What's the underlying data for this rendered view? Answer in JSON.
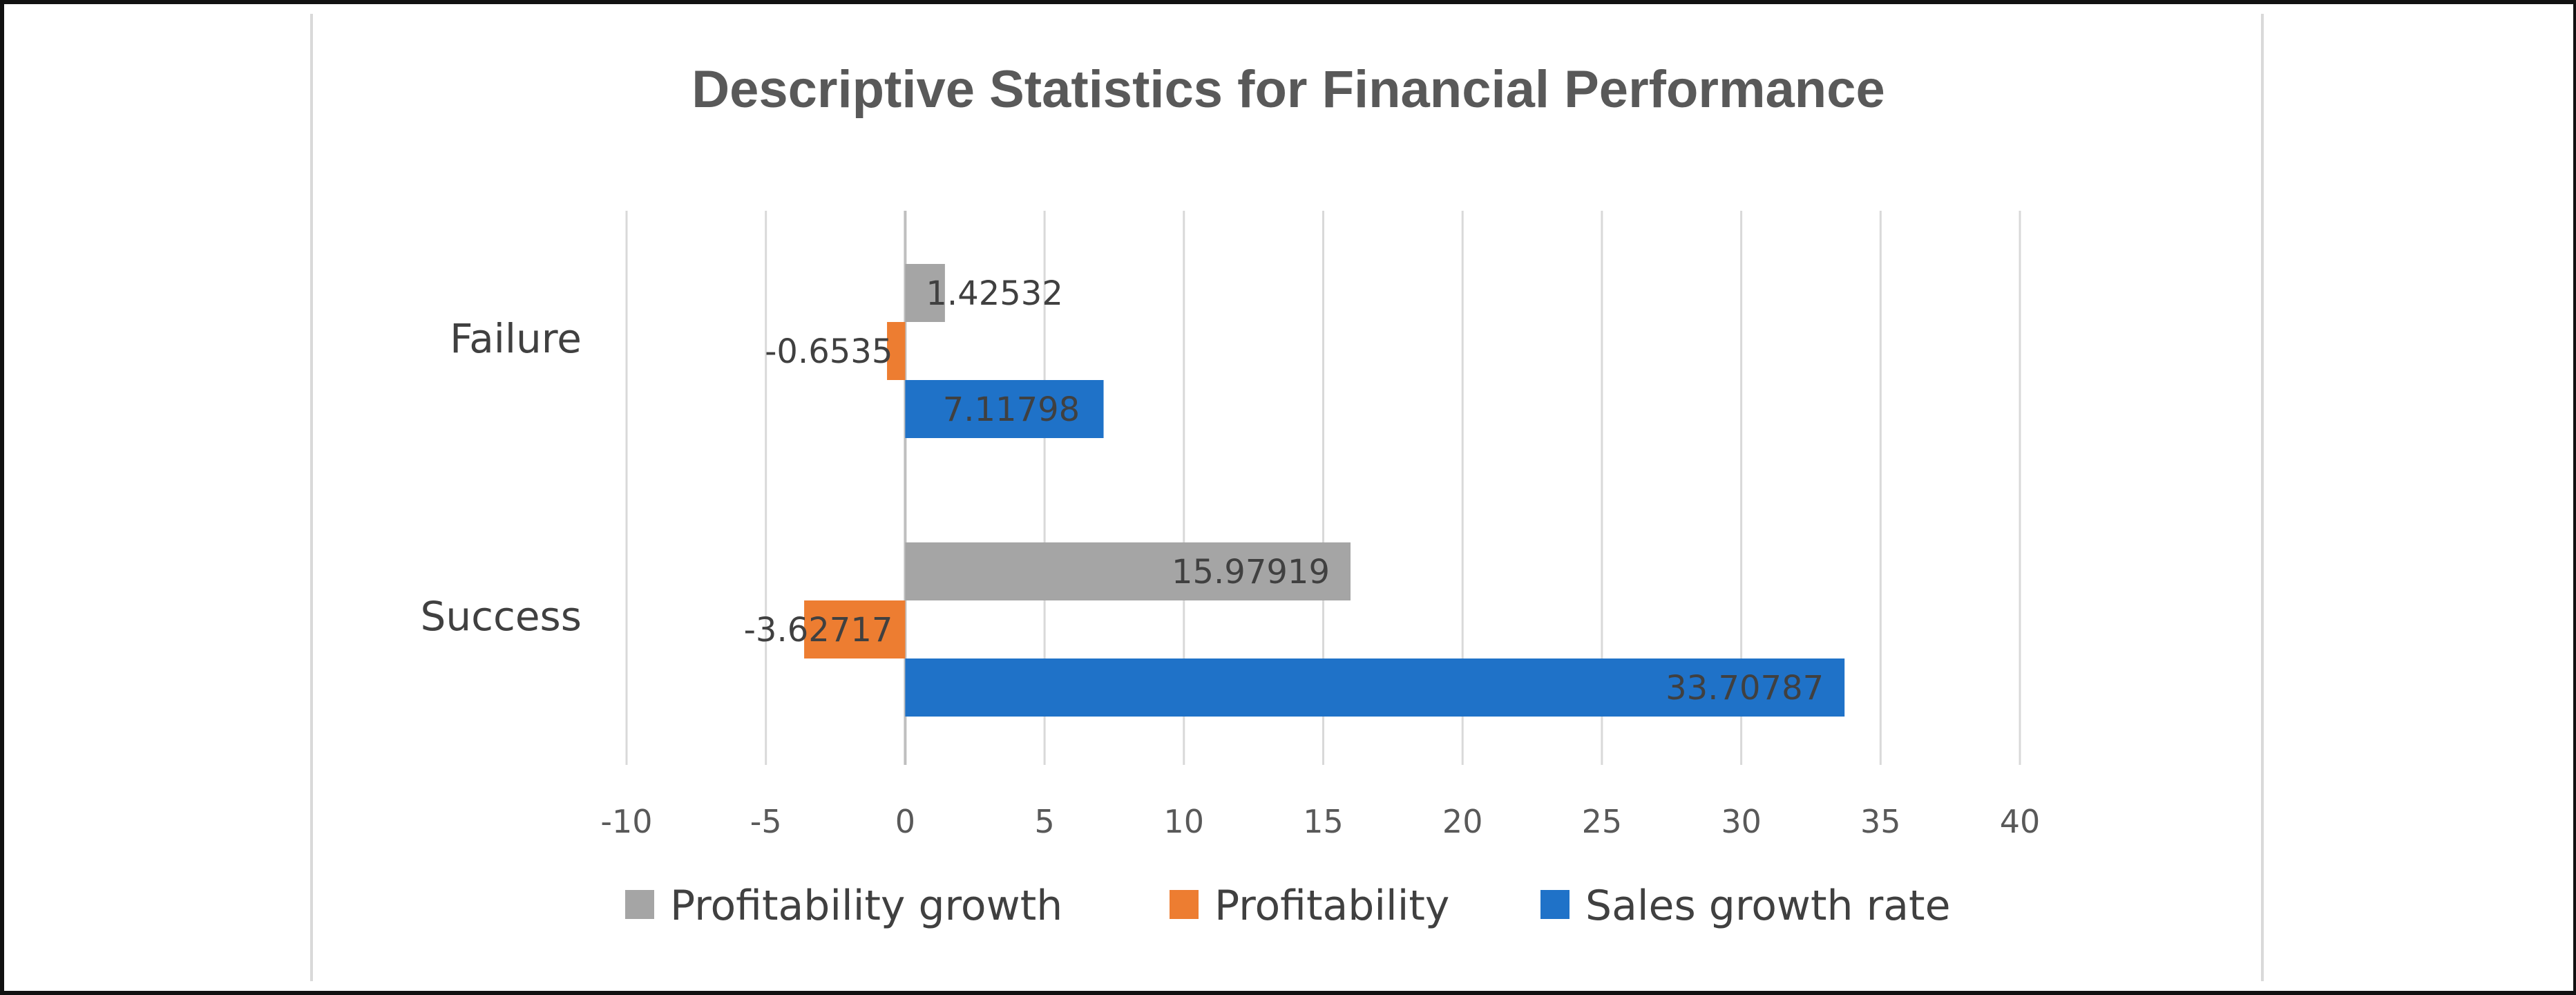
{
  "chart_data": {
    "type": "bar",
    "orientation": "horizontal",
    "title": "Descriptive Statistics for Financial Performance",
    "categories": [
      "Failure",
      "Success"
    ],
    "series": [
      {
        "name": "Profitability growth",
        "color": "#A5A5A5",
        "values": [
          1.42532,
          15.97919
        ],
        "labels": [
          "1.42532",
          "15.97919"
        ]
      },
      {
        "name": "Profitability",
        "color": "#ED7D31",
        "values": [
          -0.6535,
          -3.62717
        ],
        "labels": [
          "-0.6535",
          "-3.62717"
        ]
      },
      {
        "name": "Sales growth rate",
        "color": "#1F72C8",
        "values": [
          7.11798,
          33.70787
        ],
        "labels": [
          "7.11798",
          "33.70787"
        ]
      }
    ],
    "xlim": [
      -10,
      40
    ],
    "xticks": [
      -10,
      -5,
      0,
      5,
      10,
      15,
      20,
      25,
      30,
      35,
      40
    ],
    "xlabel": "",
    "ylabel": "",
    "grid": "vertical",
    "legend": "bottom",
    "gridline_color": "#D9D9D9"
  }
}
